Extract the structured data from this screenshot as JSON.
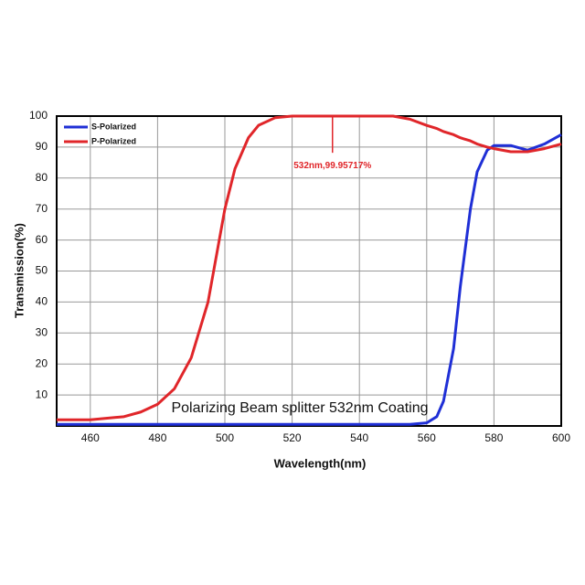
{
  "chart_data": {
    "type": "line",
    "x_label": "Wavelength(nm)",
    "y_label": "Transmission(%)",
    "overlay_text": "Polarizing Beam splitter 532nm Coating",
    "annotation": {
      "text": "532nm,99.95717%",
      "x": 532,
      "y": 99.95717,
      "color": "#e0262a"
    },
    "xlim": [
      450,
      600
    ],
    "ylim": [
      0,
      100
    ],
    "xticks": [
      460,
      480,
      500,
      520,
      540,
      560,
      580,
      600
    ],
    "yticks": [
      10,
      20,
      30,
      40,
      50,
      60,
      70,
      80,
      90,
      100
    ],
    "grid": true,
    "legend": "top-left",
    "x": [
      450,
      460,
      470,
      475,
      480,
      485,
      490,
      495,
      500,
      503,
      507,
      510,
      515,
      520,
      530,
      540,
      550,
      555,
      560,
      563,
      565,
      568,
      570,
      573,
      575,
      578,
      580,
      585,
      590,
      595,
      600
    ],
    "series": [
      {
        "name": "S-Polarized",
        "color": "#1f2fd6",
        "values": [
          0.5,
          0.5,
          0.5,
          0.5,
          0.5,
          0.5,
          0.5,
          0.5,
          0.5,
          0.5,
          0.5,
          0.5,
          0.5,
          0.5,
          0.5,
          0.5,
          0.5,
          0.5,
          1,
          3,
          8,
          25,
          45,
          70,
          82,
          89,
          90.5,
          90.5,
          89,
          91,
          94
        ]
      },
      {
        "name": "P-Polarized",
        "color": "#e0262a",
        "values": [
          2,
          2,
          3,
          4.5,
          7,
          12,
          22,
          40,
          70,
          83,
          93,
          97,
          99.5,
          100,
          100,
          100,
          100,
          99,
          97,
          96,
          95,
          94,
          93,
          92,
          91,
          90,
          89.5,
          88.5,
          88.5,
          89.5,
          91
        ]
      }
    ]
  }
}
